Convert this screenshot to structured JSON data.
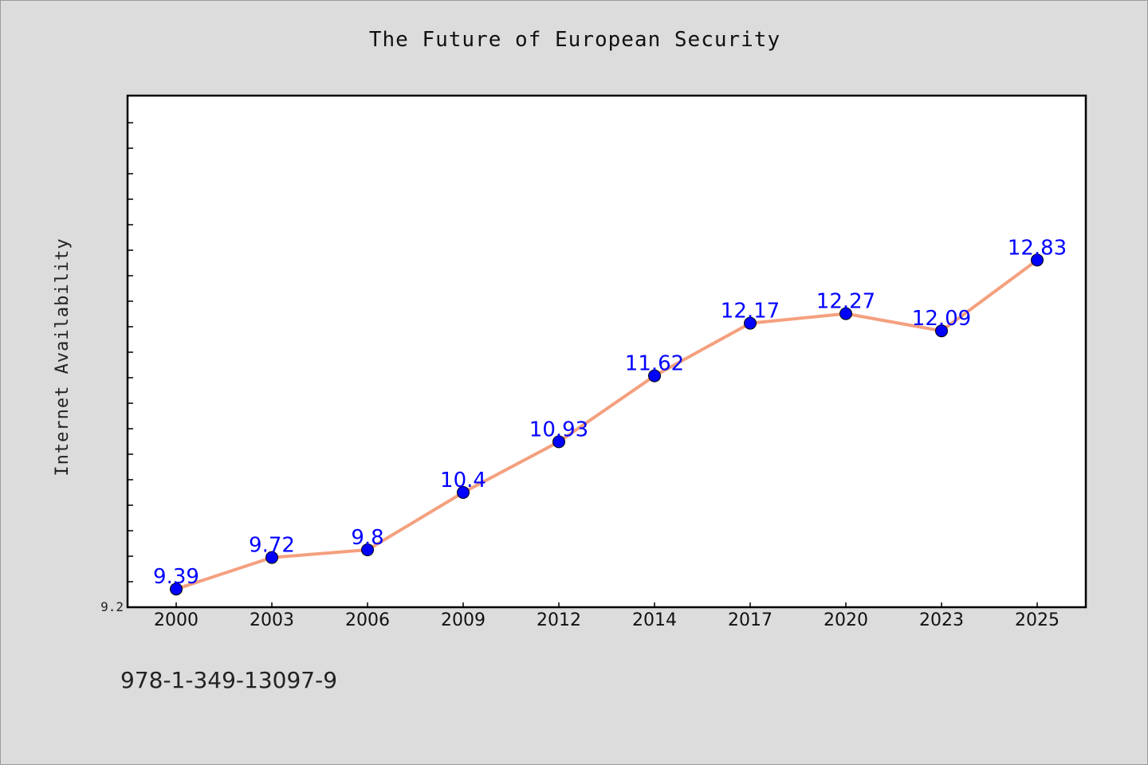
{
  "chart_data": {
    "type": "line",
    "title": "The Future of European Security",
    "xlabel": "",
    "ylabel": "Internet Availability",
    "categories": [
      "2000",
      "2003",
      "2006",
      "2009",
      "2012",
      "2014",
      "2017",
      "2020",
      "2023",
      "2025"
    ],
    "series": [
      {
        "values": [
          9.39,
          9.72,
          9.8,
          10.4,
          10.93,
          11.62,
          12.17,
          12.27,
          12.09,
          12.83
        ],
        "labels": [
          "9.39",
          "9.72",
          "9.8",
          "10.4",
          "10.93",
          "11.62",
          "12.17",
          "12.27",
          "12.09",
          "12.83"
        ],
        "line_color": "#f4a07e",
        "marker_color": "#0000ff"
      }
    ],
    "yticks": [
      "9.2"
    ],
    "ylim": [
      9.2,
      13.2
    ],
    "grid": false,
    "legend": "none",
    "plot_background": "#ffffff",
    "figure_background": "#dcdcdc"
  },
  "footnote": "978-1-349-13097-9"
}
